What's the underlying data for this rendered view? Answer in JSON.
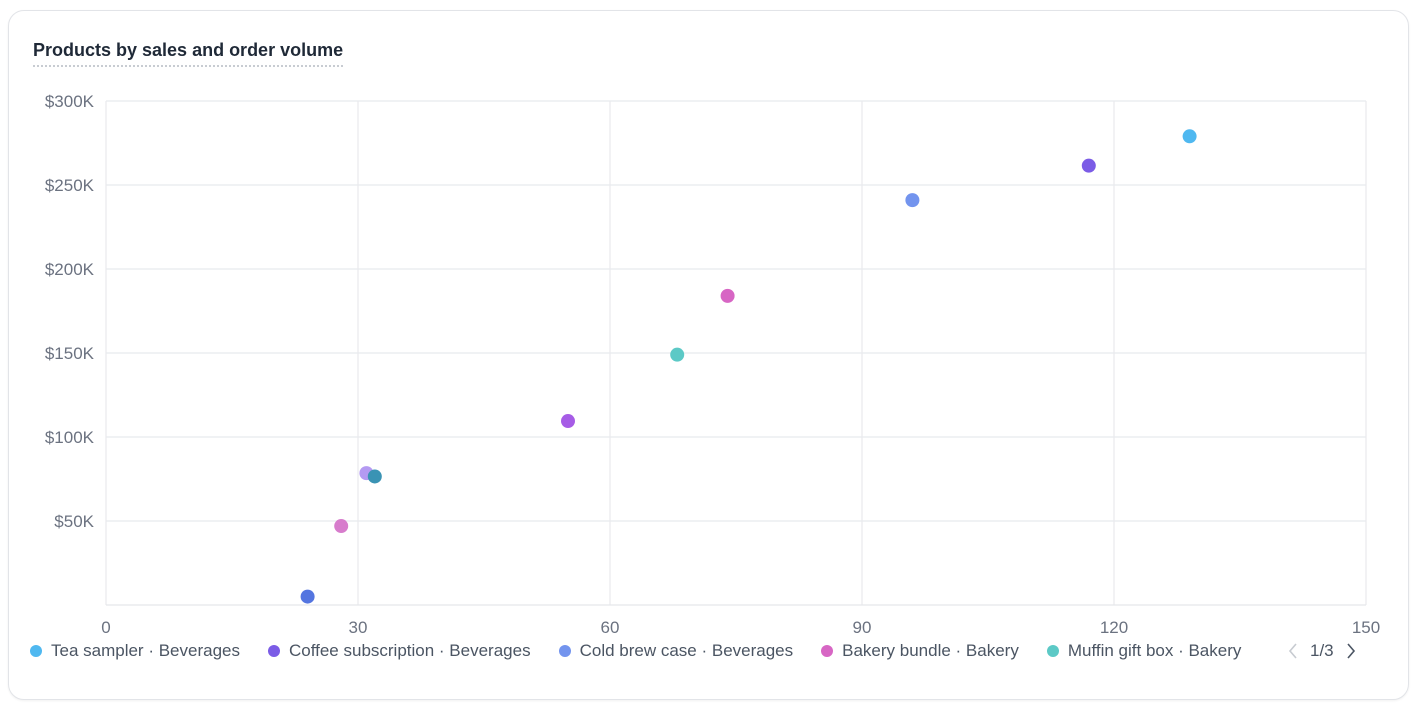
{
  "card": {
    "title": "Products by sales and order volume"
  },
  "legend": {
    "page_indicator": "1/3",
    "items": [
      {
        "label": "Tea sampler · Beverages",
        "color": "#4fb8f0"
      },
      {
        "label": "Coffee subscription · Beverages",
        "color": "#7b5ce6"
      },
      {
        "label": "Cold brew case · Beverages",
        "color": "#7394ee"
      },
      {
        "label": "Bakery bundle · Bakery",
        "color": "#d766c4"
      },
      {
        "label": "Muffin gift box · Bakery",
        "color": "#5cc9c6"
      }
    ]
  },
  "chart_data": {
    "type": "scatter",
    "title": "Products by sales and order volume",
    "xlabel": "",
    "ylabel": "",
    "xlim": [
      0,
      150
    ],
    "ylim": [
      0,
      300000
    ],
    "x_ticks": [
      0,
      30,
      60,
      90,
      120,
      150
    ],
    "x_tick_labels": [
      "0",
      "30",
      "60",
      "90",
      "120",
      "150"
    ],
    "y_ticks": [
      50000,
      100000,
      150000,
      200000,
      250000,
      300000
    ],
    "y_tick_labels": [
      "$50K",
      "$100K",
      "$150K",
      "$200K",
      "$250K",
      "$300K"
    ],
    "grid": true,
    "legend_position": "bottom",
    "points": [
      {
        "x": 129,
        "y": 279000,
        "color": "#4fb8f0"
      },
      {
        "x": 117,
        "y": 261500,
        "color": "#7b5ce6"
      },
      {
        "x": 96,
        "y": 241000,
        "color": "#7394ee"
      },
      {
        "x": 74,
        "y": 184000,
        "color": "#d766c4"
      },
      {
        "x": 68,
        "y": 149000,
        "color": "#5cc9c6"
      },
      {
        "x": 55,
        "y": 109500,
        "color": "#a65ce6"
      },
      {
        "x": 31,
        "y": 78500,
        "color": "#b49af2"
      },
      {
        "x": 32,
        "y": 76500,
        "color": "#3a93b4"
      },
      {
        "x": 28,
        "y": 47000,
        "color": "#d77ccc"
      },
      {
        "x": 24,
        "y": 5000,
        "color": "#5475e0"
      }
    ]
  }
}
